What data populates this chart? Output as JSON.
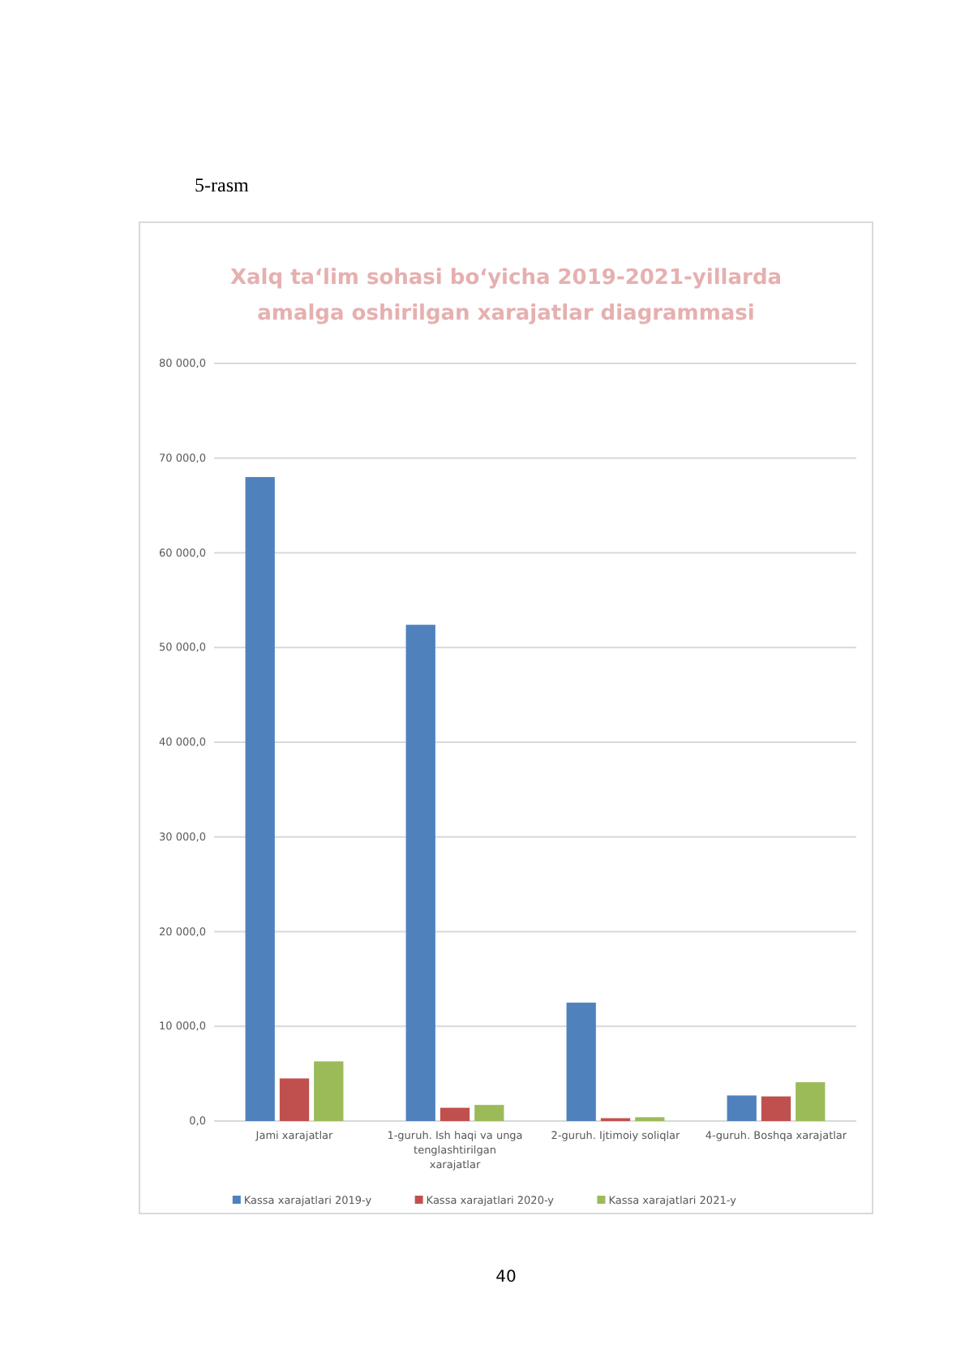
{
  "chart_data": {
    "type": "bar",
    "title": "Xalq ta‘lim sohasi bo‘yicha 2019-2021-yillarda amalga oshirilgan xarajatlar diagrammasi",
    "categories": [
      "Jami xarajatlar",
      "1-guruh. Ish haqi va unga tenglashtirilgan xarajatlar",
      "2-guruh. Ijtimoiy soliqlar",
      "4-guruh. Boshqa xarajatlar"
    ],
    "series": [
      {
        "name": "Kassa xarajatlari 2019-y",
        "color": "#4f81bd",
        "values": [
          68000,
          52400,
          12500,
          2700
        ]
      },
      {
        "name": "Kassa xarajatlari 2020-y",
        "color": "#c0504d",
        "values": [
          4500,
          1400,
          300,
          2600
        ]
      },
      {
        "name": "Kassa xarajatlari 2021-y",
        "color": "#9bbb59",
        "values": [
          6300,
          1700,
          400,
          4100
        ]
      }
    ],
    "ylim": [
      0,
      80000
    ],
    "yticks": [
      {
        "value": 0,
        "label": "0,0"
      },
      {
        "value": 10000,
        "label": "10 000,0"
      },
      {
        "value": 20000,
        "label": "20 000,0"
      },
      {
        "value": 30000,
        "label": "30 000,0"
      },
      {
        "value": 40000,
        "label": "40 000,0"
      },
      {
        "value": 50000,
        "label": "50 000,0"
      },
      {
        "value": 60000,
        "label": "60 000,0"
      },
      {
        "value": 70000,
        "label": "70 000,0"
      },
      {
        "value": 80000,
        "label": "80 000,0"
      }
    ],
    "grid": "y",
    "legend": "bottom",
    "annotations": [
      "5-rasm",
      "40"
    ]
  }
}
